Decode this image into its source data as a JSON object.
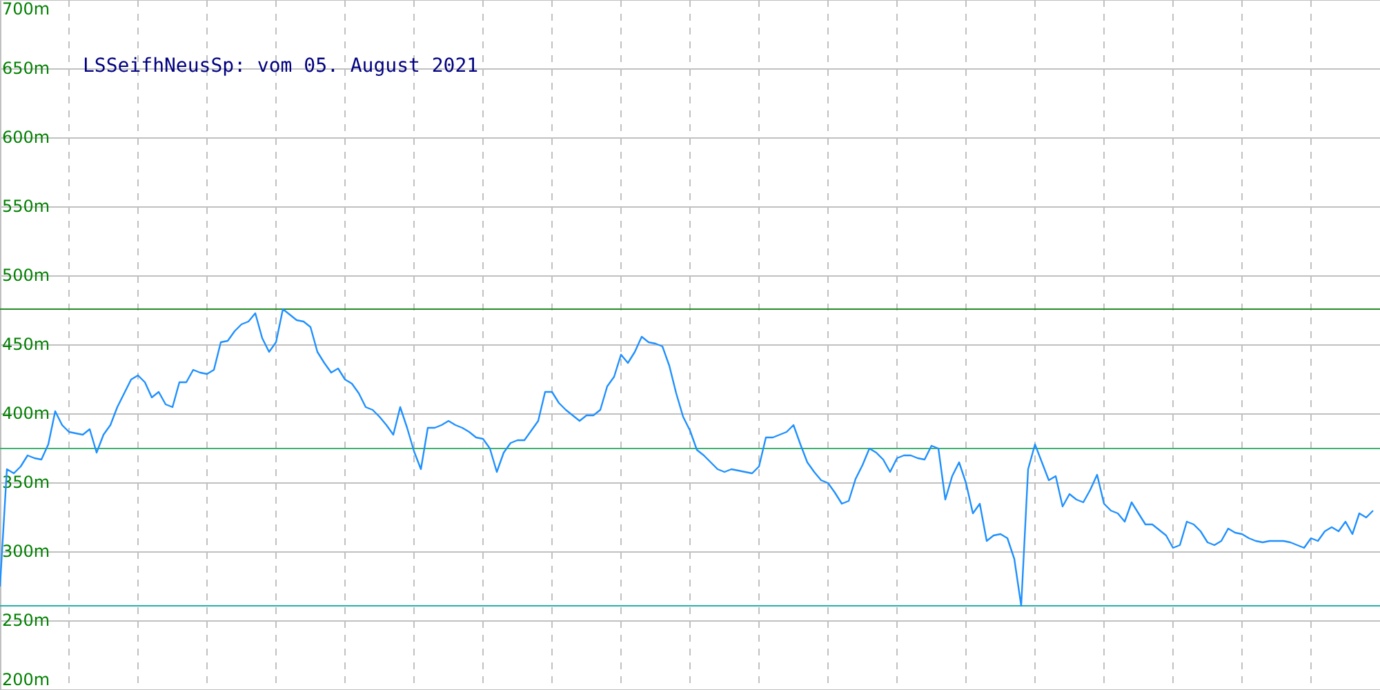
{
  "chart_data": {
    "type": "line",
    "title": "LSSeifhNeusSp: vom 05. August 2021",
    "categories": [
      null,
      null,
      null,
      null,
      null,
      null,
      null,
      null,
      null,
      null,
      null,
      null,
      null,
      null,
      null,
      null,
      null,
      null,
      null,
      null,
      null,
      null,
      null,
      null,
      null,
      null,
      null,
      null,
      null,
      null,
      null,
      null,
      null,
      null,
      null,
      null,
      null,
      null,
      null,
      null,
      null,
      null,
      null,
      null,
      null,
      null,
      null,
      null,
      null,
      null,
      null,
      null,
      null,
      null,
      null,
      null,
      null,
      null,
      null,
      null,
      null,
      null,
      null,
      null,
      null,
      null,
      null,
      null,
      null,
      null,
      null,
      null,
      null,
      null,
      null,
      null,
      null,
      null,
      null,
      null,
      null,
      null,
      null,
      null,
      null,
      null,
      null,
      null,
      null,
      null,
      null,
      null,
      null,
      null,
      null,
      null,
      null,
      null,
      null,
      null,
      null,
      null,
      null,
      null,
      null,
      null,
      null,
      null,
      null,
      null,
      null,
      null,
      null,
      null,
      null,
      null,
      null,
      null,
      null,
      null,
      null,
      null,
      null,
      null,
      null,
      null,
      null,
      null,
      null,
      null,
      null,
      null,
      null,
      null,
      null,
      null,
      null,
      null,
      null,
      null,
      null,
      null,
      null,
      null,
      null,
      null,
      null,
      null,
      null,
      null,
      null,
      null,
      null,
      null,
      null,
      null,
      null,
      null,
      null,
      null,
      null,
      null,
      null,
      null,
      null,
      null,
      null,
      null,
      null,
      null,
      null,
      null,
      null,
      null,
      null,
      null,
      null,
      null,
      null,
      null,
      null,
      null,
      null,
      null,
      null,
      null,
      null,
      null,
      null,
      null,
      null,
      null,
      null,
      null,
      null,
      null,
      null,
      null,
      null,
      null
    ],
    "series": [
      {
        "color": "#1e90ff",
        "values": [
          275,
          360,
          357,
          362,
          370,
          368,
          367,
          378,
          402,
          392,
          387,
          386,
          385,
          389,
          372,
          385,
          392,
          405,
          415,
          425,
          428,
          423,
          412,
          416,
          407,
          405,
          423,
          423,
          432,
          430,
          429,
          432,
          452,
          453,
          460,
          465,
          467,
          473,
          455,
          445,
          452,
          476,
          472,
          468,
          467,
          463,
          445,
          437,
          430,
          433,
          425,
          422,
          415,
          405,
          403,
          398,
          392,
          385,
          405,
          390,
          373,
          360,
          390,
          390,
          392,
          395,
          392,
          390,
          387,
          383,
          382,
          375,
          358,
          372,
          379,
          381,
          381,
          388,
          395,
          416,
          416,
          408,
          403,
          399,
          395,
          399,
          399,
          403,
          420,
          427,
          443,
          437,
          445,
          456,
          452,
          451,
          449,
          435,
          415,
          398,
          388,
          374,
          370,
          365,
          360,
          358,
          360,
          359,
          358,
          357,
          362,
          383,
          383,
          385,
          387,
          392,
          378,
          365,
          358,
          352,
          350,
          343,
          335,
          337,
          353,
          363,
          375,
          372,
          367,
          358,
          368,
          370,
          370,
          368,
          367,
          377,
          375,
          338,
          355,
          365,
          350,
          328,
          335,
          308,
          312,
          313,
          310,
          295,
          261,
          360,
          378,
          365,
          352,
          355,
          333,
          342,
          338,
          336,
          345,
          356,
          335,
          330,
          328,
          322,
          336,
          328,
          320,
          320,
          316,
          312,
          303,
          305,
          322,
          320,
          315,
          307,
          305,
          308,
          317,
          314,
          313,
          310,
          308,
          307,
          308,
          308,
          308,
          307,
          305,
          303,
          310,
          308,
          315,
          318,
          315,
          322,
          313,
          328,
          325,
          330
        ]
      }
    ],
    "ylim": [
      200,
      700
    ],
    "yticks": [
      {
        "value": 200,
        "label": "200m"
      },
      {
        "value": 250,
        "label": "250m"
      },
      {
        "value": 300,
        "label": "300m"
      },
      {
        "value": 350,
        "label": "350m"
      },
      {
        "value": 400,
        "label": "400m"
      },
      {
        "value": 450,
        "label": "450m"
      },
      {
        "value": 500,
        "label": "500m"
      },
      {
        "value": 550,
        "label": "550m"
      },
      {
        "value": 600,
        "label": "600m"
      },
      {
        "value": 650,
        "label": "650m"
      },
      {
        "value": 700,
        "label": "700m"
      }
    ],
    "tick_labels": "y",
    "grid": true,
    "marker": "none",
    "line_style": "solid",
    "ref_lines": [
      {
        "axis": "y",
        "value": 476,
        "color": "#228b22"
      },
      {
        "axis": "y",
        "value": 375,
        "color": "#3cb371"
      },
      {
        "axis": "y",
        "value": 261,
        "color": "#20b2aa"
      }
    ]
  }
}
